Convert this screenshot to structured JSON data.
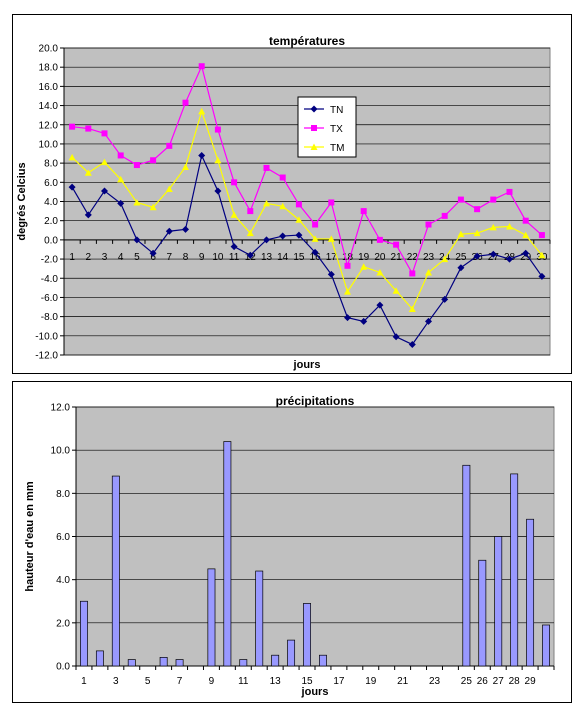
{
  "chart_data": [
    {
      "type": "line",
      "title": "températures",
      "xlabel": "jours",
      "ylabel": "degrés Celcius",
      "ylim": [
        -12,
        20
      ],
      "ytick_step": 2,
      "grid": true,
      "legend_placement": "top-center",
      "categories": [
        1,
        2,
        3,
        4,
        5,
        6,
        7,
        8,
        9,
        10,
        11,
        12,
        13,
        14,
        15,
        16,
        17,
        18,
        19,
        20,
        21,
        22,
        23,
        24,
        25,
        26,
        27,
        28,
        29,
        30
      ],
      "series": [
        {
          "name": "TN",
          "color": "#000080",
          "marker": "diamond",
          "values": [
            5.5,
            2.6,
            5.1,
            3.8,
            0.0,
            -1.4,
            0.9,
            1.1,
            8.8,
            5.1,
            -0.7,
            -1.6,
            0.0,
            0.4,
            0.5,
            -1.3,
            -3.6,
            -8.1,
            -8.5,
            -6.8,
            -10.1,
            -10.9,
            -8.5,
            -6.2,
            -2.9,
            -1.7,
            -1.5,
            -2.0,
            -1.4,
            -3.8
          ]
        },
        {
          "name": "TX",
          "color": "#ff00ff",
          "marker": "square",
          "values": [
            11.8,
            11.6,
            11.1,
            8.8,
            7.8,
            8.3,
            9.8,
            14.3,
            18.1,
            11.5,
            6.0,
            3.0,
            7.5,
            6.5,
            3.7,
            1.6,
            3.9,
            -2.7,
            3.0,
            0.0,
            -0.5,
            -3.5,
            1.6,
            2.5,
            4.2,
            3.2,
            4.2,
            5.0,
            2.0,
            0.5
          ]
        },
        {
          "name": "TM",
          "color": "#ffff00",
          "marker": "triangle",
          "values": [
            8.6,
            7.0,
            8.1,
            6.3,
            3.9,
            3.4,
            5.3,
            7.6,
            13.4,
            8.3,
            2.6,
            0.7,
            3.8,
            3.5,
            2.1,
            0.1,
            0.1,
            -5.4,
            -2.8,
            -3.4,
            -5.3,
            -7.2,
            -3.4,
            -2.0,
            0.6,
            0.7,
            1.3,
            1.4,
            0.5,
            -1.6
          ]
        }
      ]
    },
    {
      "type": "bar",
      "title": "précipitations",
      "xlabel": "jours",
      "ylabel": "hauteur d'eau en mm",
      "ylim": [
        0,
        12
      ],
      "ytick_step": 2,
      "grid": true,
      "bar_color": "#9999ff",
      "xtick_labels": [
        "1",
        "",
        "3",
        "",
        "5",
        "",
        "7",
        "",
        "9",
        "",
        "11",
        "",
        "13",
        "",
        "15",
        "",
        "17",
        "",
        "19",
        "",
        "21",
        "",
        "23",
        "",
        "25",
        "26",
        "27",
        "28",
        "29",
        ""
      ],
      "categories": [
        1,
        2,
        3,
        4,
        5,
        6,
        7,
        8,
        9,
        10,
        11,
        12,
        13,
        14,
        15,
        16,
        17,
        18,
        19,
        20,
        21,
        22,
        23,
        24,
        25,
        26,
        27,
        28,
        29,
        30
      ],
      "values": [
        3.0,
        0.7,
        8.8,
        0.3,
        0.0,
        0.4,
        0.3,
        0.0,
        4.5,
        10.4,
        0.3,
        4.4,
        0.5,
        1.2,
        2.9,
        0.5,
        0,
        0,
        0,
        0,
        0,
        0,
        0,
        0,
        9.3,
        4.9,
        6.0,
        8.9,
        6.8,
        1.9
      ]
    }
  ]
}
